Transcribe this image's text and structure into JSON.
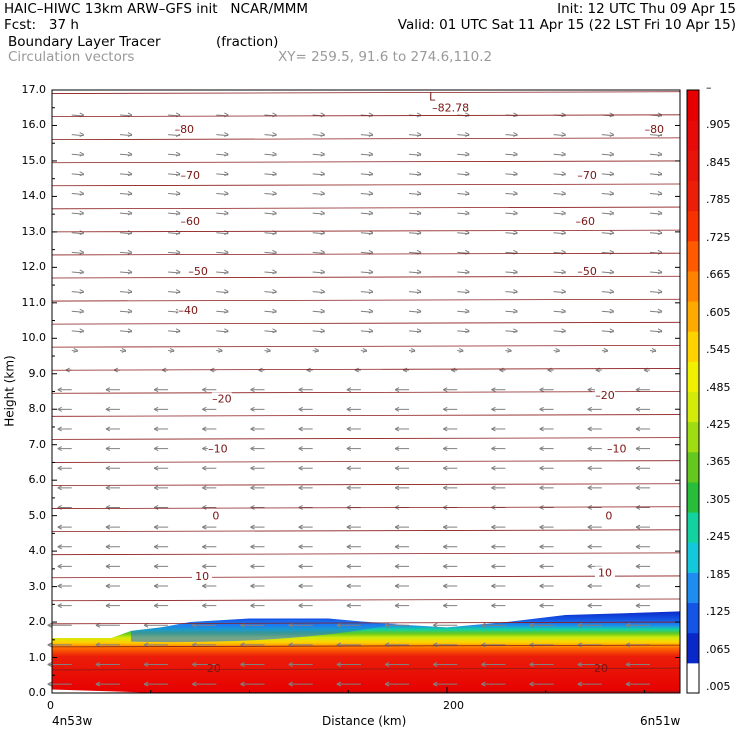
{
  "header": {
    "line1_left": "HAIC–HIWC 13km ARW–GFS init   NCAR/MMM",
    "line1_right": "Init: 12 UTC Thu 09 Apr 15",
    "line2_left": "Fcst:   37 h",
    "line2_right": "Valid: 01 UTC Sat 11 Apr 15 (22 LST Fri 10 Apr 15)",
    "line3_left": "Boundary Layer Tracer",
    "line3_units": "(fraction)",
    "line4_left": "Circulation vectors",
    "line4_xy": "XY= 259.5, 91.6 to 274.6,110.2"
  },
  "chart_data": {
    "type": "heatmap",
    "title": "Boundary Layer Tracer",
    "units": "(fraction)",
    "xlabel": "Distance (km)",
    "ylabel": "Height (km)",
    "xlim": [
      0,
      318
    ],
    "ylim": [
      0,
      17
    ],
    "x_ticks": [
      {
        "value": 0,
        "label": "0"
      },
      {
        "value": 200,
        "label": "200"
      }
    ],
    "x_end_labels": {
      "left": "4n53w",
      "right": "6n51w"
    },
    "y_ticks": [
      "0.0",
      "1.0",
      "2.0",
      "3.0",
      "4.0",
      "5.0",
      "6.0",
      "7.0",
      "8.0",
      "9.0",
      "10.0",
      "11.0",
      "12.0",
      "13.0",
      "14.0",
      "15.0",
      "16.0",
      "17.0"
    ],
    "colorbar": {
      "labels": [
        ".005",
        ".065",
        ".125",
        ".185",
        ".245",
        ".305",
        ".365",
        ".425",
        ".485",
        ".545",
        ".605",
        ".665",
        ".725",
        ".785",
        ".845",
        ".905",
        "–"
      ],
      "colors": [
        "#ffffff",
        "#0a28c8",
        "#1455e6",
        "#1e8cf0",
        "#14c8dc",
        "#14d2a0",
        "#28be3c",
        "#64c81e",
        "#a0dc14",
        "#d2eb0a",
        "#f0f000",
        "#ffd200",
        "#ffaa00",
        "#ff8200",
        "#ff5a00",
        "#f53200",
        "#eb1e0a",
        "#e6140a",
        "#e60a0a",
        "#e60000"
      ]
    },
    "temperature_isotherms_c": [
      20,
      10,
      0,
      -10,
      -20,
      -40,
      -50,
      -60,
      -70,
      -80
    ],
    "isotherm_label_positions_km": [
      {
        "value": 20,
        "left_x": 82,
        "left_y": 0.7,
        "right_x": 278,
        "right_y": 0.7
      },
      {
        "value": 10,
        "left_x": 76,
        "left_y": 3.3,
        "right_x": 280,
        "right_y": 3.4
      },
      {
        "value": 0,
        "left_x": 83,
        "left_y": 5.0,
        "right_x": 282,
        "right_y": 5.0
      },
      {
        "value": -10,
        "left_x": 84,
        "left_y": 6.9,
        "right_x": 286,
        "right_y": 6.9
      },
      {
        "value": -20,
        "left_x": 86,
        "left_y": 8.3,
        "right_x": 280,
        "right_y": 8.4
      },
      {
        "value": -40,
        "left_x": 69,
        "left_y": 10.8,
        "right_x": null,
        "right_y": null
      },
      {
        "value": -50,
        "left_x": 74,
        "left_y": 11.9,
        "right_x": 271,
        "right_y": 11.9
      },
      {
        "value": -60,
        "left_x": 70,
        "left_y": 13.3,
        "right_x": 270,
        "right_y": 13.3
      },
      {
        "value": -70,
        "left_x": 70,
        "left_y": 14.6,
        "right_x": 271,
        "right_y": 14.6
      },
      {
        "value": -80,
        "left_x": 67,
        "left_y": 15.9,
        "right_x": 305,
        "right_y": 15.9
      }
    ],
    "low_marker": {
      "label": "L",
      "value": "–82.78",
      "x_km": 195,
      "y_km": 16.7
    },
    "tracer_layer": {
      "top_km_at_x": [
        {
          "x": 0,
          "top": 1.55
        },
        {
          "x": 30,
          "top": 1.55
        },
        {
          "x": 40,
          "top": 1.75
        },
        {
          "x": 55,
          "top": 1.85
        },
        {
          "x": 70,
          "top": 2.0
        },
        {
          "x": 100,
          "top": 2.1
        },
        {
          "x": 140,
          "top": 2.1
        },
        {
          "x": 170,
          "top": 1.95
        },
        {
          "x": 200,
          "top": 1.85
        },
        {
          "x": 230,
          "top": 2.0
        },
        {
          "x": 260,
          "top": 2.2
        },
        {
          "x": 290,
          "top": 2.25
        },
        {
          "x": 318,
          "top": 2.3
        }
      ],
      "near_surface_value": 1.0
    }
  }
}
